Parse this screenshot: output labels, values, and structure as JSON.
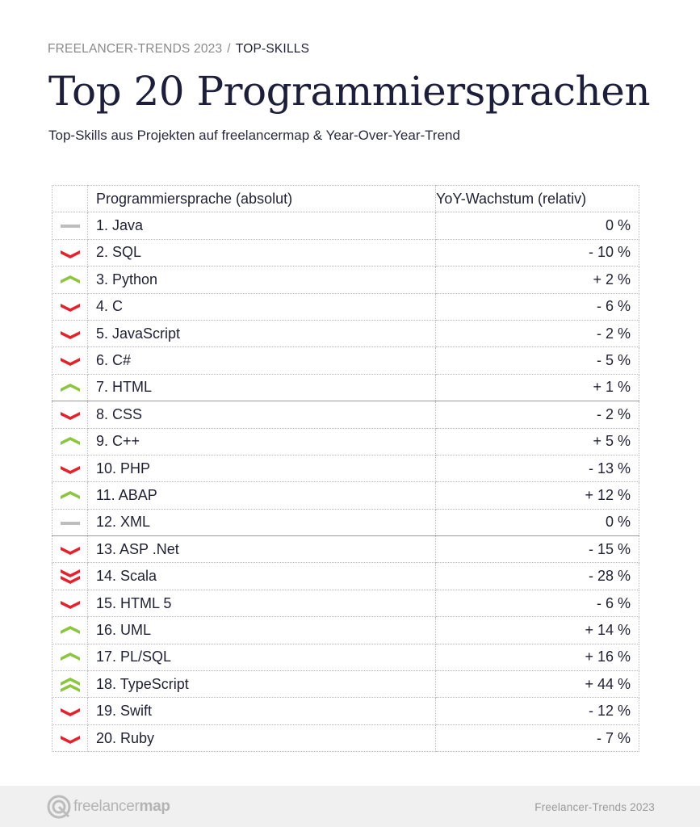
{
  "breadcrumb": {
    "section": "FREELANCER-TRENDS 2023",
    "separator": "/",
    "current": "TOP-SKILLS"
  },
  "title": "Top 20 Programmiersprachen",
  "subtitle": "Top-Skills aus Projekten auf freelancermap  & Year-Over-Year-Trend",
  "table": {
    "headers": {
      "language": "Programmiersprache (absolut)",
      "yoy": "YoY-Wachstum (relativ)"
    },
    "rows": [
      {
        "rank_name": "1. Java",
        "yoy": "0 %",
        "trend": "neutral"
      },
      {
        "rank_name": "2. SQL",
        "yoy": "- 10 %",
        "trend": "down"
      },
      {
        "rank_name": "3. Python",
        "yoy": "+ 2 %",
        "trend": "up"
      },
      {
        "rank_name": "4. C",
        "yoy": "- 6 %",
        "trend": "down"
      },
      {
        "rank_name": "5. JavaScript",
        "yoy": "- 2 %",
        "trend": "down"
      },
      {
        "rank_name": "6. C#",
        "yoy": "- 5 %",
        "trend": "down"
      },
      {
        "rank_name": "7. HTML",
        "yoy": "+ 1 %",
        "trend": "up"
      },
      {
        "rank_name": "8. CSS",
        "yoy": "- 2 %",
        "trend": "down"
      },
      {
        "rank_name": "9. C++",
        "yoy": "+ 5 %",
        "trend": "up"
      },
      {
        "rank_name": "10. PHP",
        "yoy": "- 13 %",
        "trend": "down"
      },
      {
        "rank_name": "11. ABAP",
        "yoy": "+ 12 %",
        "trend": "up"
      },
      {
        "rank_name": "12. XML",
        "yoy": "0 %",
        "trend": "neutral"
      },
      {
        "rank_name": "13. ASP .Net",
        "yoy": "- 15 %",
        "trend": "down"
      },
      {
        "rank_name": "14. Scala",
        "yoy": "- 28 %",
        "trend": "strong-down"
      },
      {
        "rank_name": "15. HTML 5",
        "yoy": "- 6 %",
        "trend": "down"
      },
      {
        "rank_name": "16. UML",
        "yoy": "+ 14 %",
        "trend": "up"
      },
      {
        "rank_name": "17. PL/SQL",
        "yoy": "+ 16 %",
        "trend": "up"
      },
      {
        "rank_name": "18. TypeScript",
        "yoy": "+ 44 %",
        "trend": "strong-up"
      },
      {
        "rank_name": "19. Swift",
        "yoy": "- 12 %",
        "trend": "down"
      },
      {
        "rank_name": "20. Ruby",
        "yoy": "- 7 %",
        "trend": "down"
      }
    ]
  },
  "colors": {
    "up": "#8cc63f",
    "down": "#e3222b",
    "neutral": "#bdbdbd",
    "title": "#1c1e3a"
  },
  "footer": {
    "logo_regular": "freelancer",
    "logo_bold": "map",
    "logo_icon": "freelancermap-logo-icon",
    "right_text": "Freelancer-Trends  2023"
  }
}
